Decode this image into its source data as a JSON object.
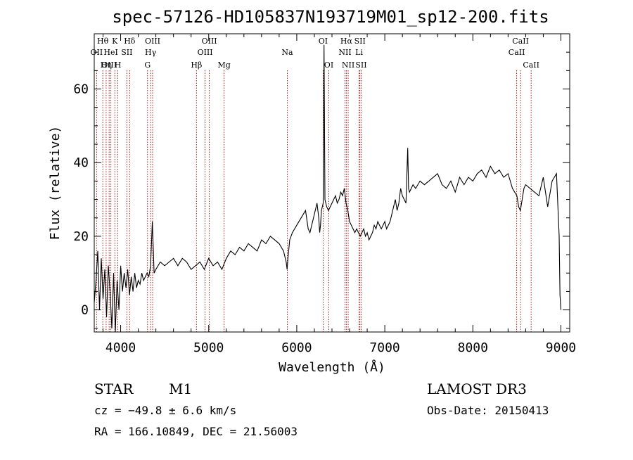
{
  "chart_data": {
    "type": "line",
    "title": "spec-57126-HD105837N193719M01_sp12-200.fits",
    "xlabel": "Wavelength (Å)",
    "ylabel": "Flux (relative)",
    "xlim": [
      3700,
      9100
    ],
    "ylim": [
      -6,
      75
    ],
    "xticks": [
      4000,
      5000,
      6000,
      7000,
      8000,
      9000
    ],
    "yticks": [
      0,
      20,
      40,
      60
    ],
    "series": [
      {
        "name": "spectrum",
        "x": [
          3700,
          3720,
          3740,
          3760,
          3780,
          3800,
          3820,
          3840,
          3860,
          3880,
          3900,
          3920,
          3940,
          3960,
          3980,
          4000,
          4020,
          4040,
          4060,
          4080,
          4100,
          4120,
          4140,
          4160,
          4180,
          4200,
          4220,
          4240,
          4260,
          4280,
          4300,
          4320,
          4340,
          4360,
          4380,
          4400,
          4450,
          4500,
          4550,
          4600,
          4650,
          4700,
          4750,
          4800,
          4850,
          4900,
          4950,
          5000,
          5050,
          5100,
          5150,
          5200,
          5250,
          5300,
          5350,
          5400,
          5450,
          5500,
          5550,
          5600,
          5650,
          5700,
          5750,
          5800,
          5850,
          5880,
          5890,
          5900,
          5920,
          5950,
          6000,
          6050,
          6100,
          6130,
          6150,
          6170,
          6200,
          6230,
          6250,
          6260,
          6270,
          6280,
          6300,
          6310,
          6320,
          6340,
          6360,
          6380,
          6400,
          6420,
          6440,
          6460,
          6480,
          6500,
          6520,
          6540,
          6560,
          6570,
          6580,
          6600,
          6620,
          6640,
          6660,
          6680,
          6700,
          6720,
          6740,
          6760,
          6780,
          6800,
          6820,
          6840,
          6860,
          6880,
          6900,
          6920,
          6940,
          6960,
          6980,
          7000,
          7020,
          7040,
          7060,
          7080,
          7100,
          7120,
          7140,
          7160,
          7180,
          7200,
          7220,
          7240,
          7260,
          7270,
          7280,
          7300,
          7320,
          7350,
          7400,
          7450,
          7500,
          7550,
          7600,
          7650,
          7700,
          7750,
          7800,
          7850,
          7900,
          7950,
          8000,
          8050,
          8100,
          8150,
          8200,
          8250,
          8300,
          8350,
          8400,
          8450,
          8500,
          8520,
          8540,
          8560,
          8580,
          8600,
          8650,
          8700,
          8750,
          8800,
          8850,
          8900,
          8950,
          8970,
          8980,
          8990,
          9000
        ],
        "y": [
          2,
          8,
          16,
          0,
          14,
          3,
          11,
          -2,
          12,
          5,
          -5,
          10,
          -6,
          8,
          0,
          12,
          5,
          10,
          6,
          11,
          4,
          9,
          5,
          10,
          6,
          8,
          7,
          10,
          8,
          9,
          10,
          9,
          12,
          24,
          10,
          11,
          13,
          12,
          13,
          14,
          12,
          14,
          13,
          11,
          12,
          13,
          11,
          14,
          12,
          13,
          11,
          14,
          16,
          15,
          17,
          16,
          18,
          17,
          16,
          19,
          18,
          20,
          19,
          18,
          16,
          13,
          11,
          14,
          19,
          21,
          23,
          25,
          27,
          22,
          21,
          23,
          26,
          29,
          25,
          21,
          23,
          27,
          29,
          72,
          30,
          28,
          27,
          28,
          29,
          30,
          31,
          29,
          30,
          32,
          31,
          33,
          29,
          28,
          27,
          24,
          23,
          22,
          21,
          22,
          21,
          20,
          21,
          22,
          20,
          21,
          19,
          20,
          21,
          23,
          22,
          24,
          23,
          22,
          23,
          24,
          22,
          23,
          24,
          26,
          28,
          30,
          27,
          29,
          33,
          31,
          30,
          29,
          44,
          33,
          32,
          33,
          34,
          33,
          35,
          34,
          35,
          36,
          37,
          34,
          33,
          35,
          32,
          36,
          34,
          36,
          35,
          37,
          38,
          36,
          39,
          37,
          38,
          36,
          37,
          33,
          31,
          28,
          27,
          30,
          33,
          34,
          33,
          32,
          31,
          36,
          28,
          35,
          37,
          26,
          20,
          4,
          0
        ]
      }
    ],
    "spectral_lines": [
      {
        "label": "Hθ",
        "wavelength": 3797,
        "row": 1
      },
      {
        "label": "OII",
        "wavelength": 3727,
        "row": 2
      },
      {
        "label": "OIII",
        "wavelength": 3869,
        "row": 3
      },
      {
        "label": "K",
        "wavelength": 3934,
        "row": 1
      },
      {
        "label": "HeI",
        "wavelength": 3889,
        "row": 2
      },
      {
        "label": "Hη",
        "wavelength": 3835,
        "row": 3
      },
      {
        "label": "SII",
        "wavelength": 4070,
        "row": 2
      },
      {
        "label": "H",
        "wavelength": 3968,
        "row": 3
      },
      {
        "label": "Hδ",
        "wavelength": 4102,
        "row": 1
      },
      {
        "label": "OIII",
        "wavelength": 4363,
        "row": 1
      },
      {
        "label": "Hγ",
        "wavelength": 4340,
        "row": 2
      },
      {
        "label": "G",
        "wavelength": 4305,
        "row": 3
      },
      {
        "label": "OIII",
        "wavelength": 5007,
        "row": 1
      },
      {
        "label": "OIII",
        "wavelength": 4959,
        "row": 2
      },
      {
        "label": "Hβ",
        "wavelength": 4861,
        "row": 3
      },
      {
        "label": "Mg",
        "wavelength": 5175,
        "row": 3
      },
      {
        "label": "Na",
        "wavelength": 5893,
        "row": 2
      },
      {
        "label": "OI",
        "wavelength": 6300,
        "row": 1
      },
      {
        "label": "OI",
        "wavelength": 6364,
        "row": 3
      },
      {
        "label": "Hα",
        "wavelength": 6563,
        "row": 1
      },
      {
        "label": "NII",
        "wavelength": 6548,
        "row": 2
      },
      {
        "label": "NII",
        "wavelength": 6584,
        "row": 3
      },
      {
        "label": "SII",
        "wavelength": 6717,
        "row": 1
      },
      {
        "label": "Li",
        "wavelength": 6708,
        "row": 2
      },
      {
        "label": "SII",
        "wavelength": 6731,
        "row": 3
      },
      {
        "label": "CaII",
        "wavelength": 8542,
        "row": 1
      },
      {
        "label": "CaII",
        "wavelength": 8498,
        "row": 2
      },
      {
        "label": "CaII",
        "wavelength": 8662,
        "row": 3
      }
    ]
  },
  "footer": {
    "class_label": "STAR",
    "subclass": "M1",
    "survey": "LAMOST DR3",
    "cz": "cz = −49.8 ± 6.6 km/s",
    "obs_date": "Obs-Date: 20150413",
    "coords": "RA = 166.10849, DEC =  21.56003"
  }
}
